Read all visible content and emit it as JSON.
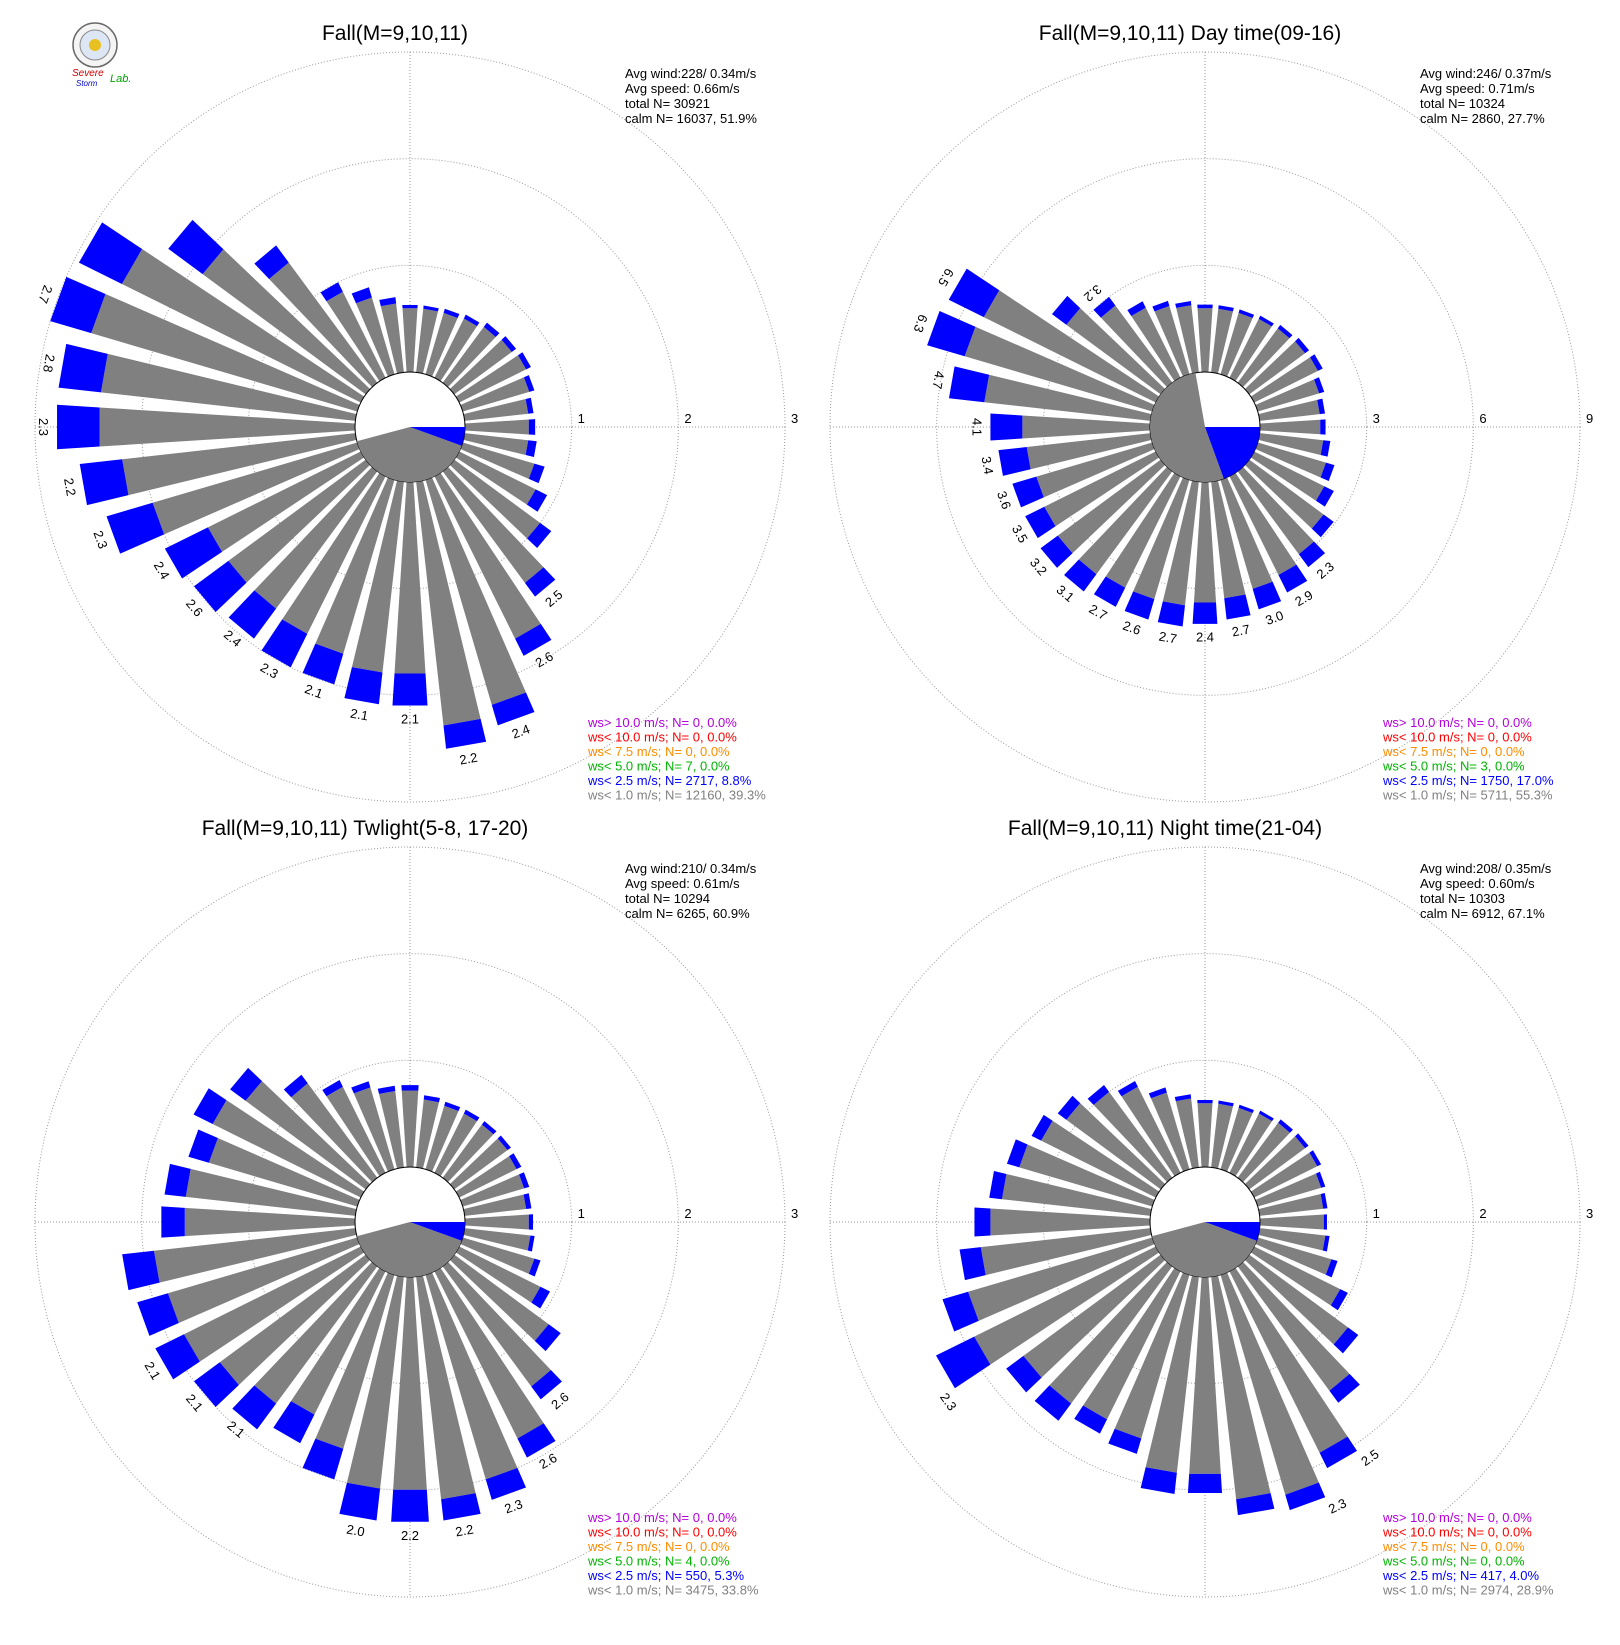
{
  "logo": {
    "line1": "Severe",
    "line2": "Storm",
    "line3": "Lab."
  },
  "colors": {
    "calm": "#808080",
    "lt1": "#808080",
    "lt2_5": "#0000ff",
    "lt5": "#00b400",
    "lt7_5": "#ff8c00",
    "lt10": "#ff0000",
    "gt10": "#b400dc"
  },
  "chart_data": [
    {
      "type": "polar-bar",
      "title": "Fall(M=9,10,11)",
      "ring_labels": [
        "1",
        "2",
        "3"
      ],
      "rmax": 3,
      "calm_sectors": [
        [
          0,
          0.5
        ],
        [
          90,
          0.5
        ],
        [
          270,
          0.5
        ]
      ],
      "stats": {
        "avg_wind": "Avg wind:228/ 0.34m/s",
        "avg_speed": "Avg speed: 0.66m/s",
        "total": "total N=       30921",
        "calm": "calm N=  16037,  51.9%"
      },
      "legend": [
        "ws> 10.0 m/s; N=     0,  0.0%",
        "ws< 10.0 m/s; N=     0,  0.0%",
        "ws<  7.5 m/s; N=     0,  0.0%",
        "ws<  5.0 m/s; N=     7,  0.0%",
        "ws<  2.5 m/s; N=  2717,  8.8%",
        "ws<  1.0 m/s; N= 12160, 39.3%"
      ],
      "directions_deg": [
        0,
        10,
        20,
        30,
        40,
        50,
        60,
        70,
        80,
        90,
        100,
        110,
        120,
        130,
        140,
        150,
        160,
        170,
        180,
        190,
        200,
        210,
        220,
        230,
        240,
        250,
        260,
        270,
        280,
        290,
        300,
        310,
        320,
        330,
        340,
        350
      ],
      "ws_lt1": [
        0.6,
        0.6,
        0.6,
        0.62,
        0.65,
        0.67,
        0.7,
        0.65,
        0.6,
        0.6,
        0.6,
        0.7,
        0.8,
        1.0,
        1.3,
        1.7,
        2.2,
        2.3,
        1.8,
        1.8,
        1.7,
        1.65,
        1.6,
        1.6,
        1.6,
        2.0,
        2.2,
        2.4,
        2.4,
        2.6,
        2.5,
        1.9,
        1.4,
        0.9,
        0.75,
        0.65
      ],
      "ws_lt2_5": [
        0.03,
        0.03,
        0.04,
        0.04,
        0.05,
        0.05,
        0.05,
        0.05,
        0.05,
        0.06,
        0.08,
        0.1,
        0.12,
        0.13,
        0.16,
        0.18,
        0.2,
        0.22,
        0.3,
        0.3,
        0.3,
        0.35,
        0.35,
        0.4,
        0.45,
        0.45,
        0.4,
        0.4,
        0.4,
        0.4,
        0.45,
        0.4,
        0.2,
        0.1,
        0.1,
        0.06
      ],
      "bar_labels": [
        {
          "dir": 140,
          "text": "2.5"
        },
        {
          "dir": 150,
          "text": "2.6"
        },
        {
          "dir": 160,
          "text": "2.4"
        },
        {
          "dir": 170,
          "text": "2.2"
        },
        {
          "dir": 180,
          "text": "2.1"
        },
        {
          "dir": 190,
          "text": "2.1"
        },
        {
          "dir": 200,
          "text": "2.1"
        },
        {
          "dir": 210,
          "text": "2.3"
        },
        {
          "dir": 220,
          "text": "2.4"
        },
        {
          "dir": 230,
          "text": "2.6"
        },
        {
          "dir": 240,
          "text": "2.4"
        },
        {
          "dir": 250,
          "text": "2.3"
        },
        {
          "dir": 260,
          "text": "2.2"
        },
        {
          "dir": 270,
          "text": "2.3"
        },
        {
          "dir": 280,
          "text": "2.8"
        },
        {
          "dir": 290,
          "text": "2.7"
        }
      ]
    },
    {
      "type": "polar-bar",
      "title": "Fall(M=9,10,11) Day time(09-16)",
      "ring_labels": [
        "3",
        "6",
        "9"
      ],
      "rmax": 9,
      "calm_sectors": [
        [
          0,
          1.5
        ],
        [
          90,
          1.5
        ],
        [
          270,
          1.5
        ]
      ],
      "stats": {
        "avg_wind": "Avg wind:246/ 0.37m/s",
        "avg_speed": "Avg speed: 0.71m/s",
        "total": "total N=      10324",
        "calm": "calm N=   2860,  27.7%"
      },
      "legend": [
        "ws> 10.0 m/s; N=     0,  0.0%",
        "ws< 10.0 m/s; N=     0,  0.0%",
        "ws<  7.5 m/s; N=     0,  0.0%",
        "ws<  5.0 m/s; N=     3,  0.0%",
        "ws<  2.5 m/s; N=  1750, 17.0%",
        "ws<  1.0 m/s; N=  5711, 55.3%"
      ],
      "directions_deg": [
        0,
        10,
        20,
        30,
        40,
        50,
        60,
        70,
        80,
        90,
        100,
        110,
        120,
        130,
        140,
        150,
        160,
        170,
        180,
        190,
        200,
        210,
        220,
        230,
        240,
        250,
        260,
        270,
        280,
        290,
        300,
        310,
        320,
        330,
        340,
        350
      ],
      "ws_lt1": [
        1.8,
        1.8,
        1.8,
        1.85,
        1.9,
        1.95,
        2.0,
        1.8,
        1.7,
        1.7,
        1.8,
        2.0,
        2.2,
        2.6,
        2.9,
        3.1,
        3.2,
        3.3,
        3.4,
        3.5,
        3.5,
        3.5,
        3.6,
        3.6,
        3.5,
        3.4,
        3.5,
        3.6,
        4.7,
        5.5,
        5.4,
        3.3,
        2.7,
        2.2,
        2.0,
        1.9
      ],
      "ws_lt2_5": [
        0.1,
        0.1,
        0.1,
        0.1,
        0.12,
        0.14,
        0.15,
        0.15,
        0.15,
        0.15,
        0.2,
        0.25,
        0.3,
        0.35,
        0.45,
        0.55,
        0.6,
        0.6,
        0.6,
        0.6,
        0.6,
        0.6,
        0.6,
        0.6,
        0.6,
        0.7,
        0.8,
        0.9,
        1.0,
        1.1,
        1.1,
        0.5,
        0.3,
        0.2,
        0.15,
        0.12
      ],
      "bar_labels": [
        {
          "dir": 140,
          "text": "2.3"
        },
        {
          "dir": 150,
          "text": "2.9"
        },
        {
          "dir": 160,
          "text": "3.0"
        },
        {
          "dir": 170,
          "text": "2.7"
        },
        {
          "dir": 180,
          "text": "2.4"
        },
        {
          "dir": 190,
          "text": "2.7"
        },
        {
          "dir": 200,
          "text": "2.6"
        },
        {
          "dir": 210,
          "text": "2.7"
        },
        {
          "dir": 220,
          "text": "3.1"
        },
        {
          "dir": 230,
          "text": "3.2"
        },
        {
          "dir": 240,
          "text": "3.5"
        },
        {
          "dir": 250,
          "text": "3.6"
        },
        {
          "dir": 260,
          "text": "3.4"
        },
        {
          "dir": 270,
          "text": "4.1"
        },
        {
          "dir": 280,
          "text": "4.7"
        },
        {
          "dir": 290,
          "text": "6.3"
        },
        {
          "dir": 300,
          "text": "6.5"
        },
        {
          "dir": 320,
          "text": "3.2"
        }
      ]
    },
    {
      "type": "polar-bar",
      "title": "Fall(M=9,10,11) Twlight(5-8, 17-20)",
      "ring_labels": [
        "1",
        "2",
        "3"
      ],
      "rmax": 3,
      "calm_sectors": [
        [
          0,
          0.5
        ],
        [
          90,
          0.5
        ],
        [
          270,
          0.5
        ]
      ],
      "stats": {
        "avg_wind": "Avg wind:210/ 0.34m/s",
        "avg_speed": "Avg speed: 0.61m/s",
        "total": "total N=       10294",
        "calm": "calm N=   6265,  60.9%"
      },
      "legend": [
        "ws> 10.0 m/s; N=     0,  0.0%",
        "ws< 10.0 m/s; N=     0,  0.0%",
        "ws<  7.5 m/s; N=     0,  0.0%",
        "ws<  5.0 m/s; N=     4,  0.0%",
        "ws<  2.5 m/s; N=   550,  5.3%",
        "ws<  1.0 m/s; N=  3475, 33.8%"
      ],
      "directions_deg": [
        0,
        10,
        20,
        30,
        40,
        50,
        60,
        70,
        80,
        90,
        100,
        110,
        120,
        130,
        140,
        150,
        160,
        170,
        180,
        190,
        200,
        210,
        220,
        230,
        240,
        250,
        260,
        270,
        280,
        290,
        300,
        310,
        320,
        330,
        340,
        350
      ],
      "ws_lt1": [
        0.72,
        0.64,
        0.62,
        0.62,
        0.62,
        0.62,
        0.6,
        0.6,
        0.58,
        0.6,
        0.62,
        0.7,
        0.85,
        1.1,
        1.4,
        1.75,
        2.0,
        2.1,
        2.0,
        2.0,
        1.7,
        1.5,
        1.6,
        1.7,
        1.85,
        1.85,
        1.9,
        1.6,
        1.6,
        1.45,
        1.55,
        1.4,
        1.1,
        0.9,
        0.8,
        0.72
      ],
      "ws_lt2_5": [
        0.05,
        0.04,
        0.04,
        0.04,
        0.04,
        0.04,
        0.05,
        0.05,
        0.05,
        0.04,
        0.04,
        0.06,
        0.1,
        0.14,
        0.15,
        0.2,
        0.2,
        0.2,
        0.3,
        0.3,
        0.3,
        0.3,
        0.3,
        0.3,
        0.3,
        0.3,
        0.3,
        0.22,
        0.2,
        0.2,
        0.2,
        0.18,
        0.1,
        0.07,
        0.06,
        0.05
      ],
      "bar_labels": [
        {
          "dir": 140,
          "text": "2.6"
        },
        {
          "dir": 150,
          "text": "2.6"
        },
        {
          "dir": 160,
          "text": "2.3"
        },
        {
          "dir": 170,
          "text": "2.2"
        },
        {
          "dir": 180,
          "text": "2.2"
        },
        {
          "dir": 190,
          "text": "2.0"
        },
        {
          "dir": 220,
          "text": "2.1"
        },
        {
          "dir": 230,
          "text": "2.1"
        },
        {
          "dir": 240,
          "text": "2.1"
        }
      ]
    },
    {
      "type": "polar-bar",
      "title": "Fall(M=9,10,11) Night time(21-04)",
      "ring_labels": [
        "1",
        "2",
        "3"
      ],
      "rmax": 3,
      "calm_sectors": [
        [
          0,
          0.5
        ],
        [
          90,
          0.5
        ],
        [
          270,
          0.5
        ]
      ],
      "stats": {
        "avg_wind": "Avg wind:208/ 0.35m/s",
        "avg_speed": "Avg speed: 0.60m/s",
        "total": "total N=       10303",
        "calm": "calm N=   6912,  67.1%"
      },
      "legend": [
        "ws> 10.0 m/s; N=     0,  0.0%",
        "ws< 10.0 m/s; N=     0,  0.0%",
        "ws<  7.5 m/s; N=     0,  0.0%",
        "ws<  5.0 m/s; N=     0,  0.0%",
        "ws<  2.5 m/s; N=   417,  4.0%",
        "ws<  1.0 m/s; N=  2974, 28.9%"
      ],
      "directions_deg": [
        0,
        10,
        20,
        30,
        40,
        50,
        60,
        70,
        80,
        90,
        100,
        110,
        120,
        130,
        140,
        150,
        160,
        170,
        180,
        190,
        200,
        210,
        220,
        230,
        240,
        250,
        260,
        270,
        280,
        290,
        300,
        310,
        320,
        330,
        340,
        350
      ],
      "ws_lt1": [
        0.6,
        0.6,
        0.6,
        0.62,
        0.64,
        0.65,
        0.66,
        0.62,
        0.6,
        0.6,
        0.62,
        0.72,
        0.9,
        1.15,
        1.45,
        1.9,
        2.15,
        2.1,
        1.85,
        1.85,
        1.6,
        1.55,
        1.6,
        1.6,
        1.9,
        1.8,
        1.6,
        1.5,
        1.4,
        1.3,
        1.2,
        1.1,
        1.0,
        0.9,
        0.75,
        0.65
      ],
      "ws_lt2_5": [
        0.03,
        0.03,
        0.03,
        0.03,
        0.04,
        0.04,
        0.04,
        0.04,
        0.04,
        0.03,
        0.04,
        0.06,
        0.08,
        0.12,
        0.14,
        0.16,
        0.15,
        0.15,
        0.18,
        0.2,
        0.15,
        0.15,
        0.2,
        0.2,
        0.4,
        0.25,
        0.2,
        0.15,
        0.12,
        0.12,
        0.1,
        0.1,
        0.08,
        0.06,
        0.05,
        0.04
      ],
      "bar_labels": [
        {
          "dir": 145,
          "text": "2.5"
        },
        {
          "dir": 155,
          "text": "2.3"
        },
        {
          "dir": 235,
          "text": "2.3"
        }
      ]
    }
  ]
}
